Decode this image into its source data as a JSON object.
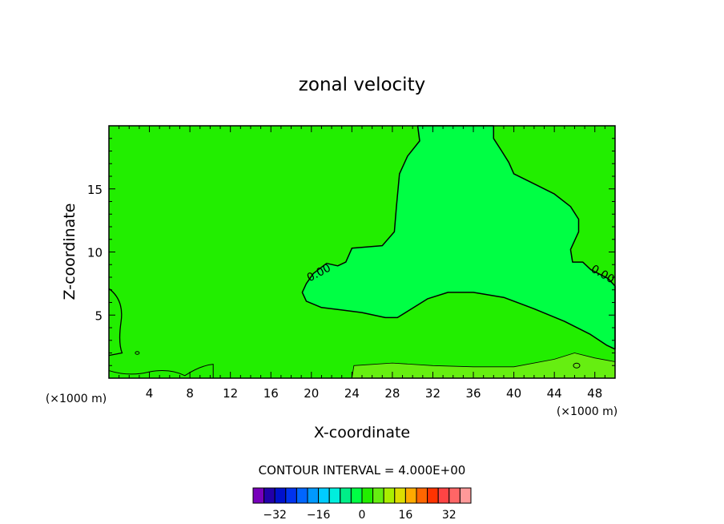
{
  "chart_data": {
    "type": "contour",
    "title": "zonal velocity",
    "xlabel": "X-coordinate",
    "ylabel": "Z-coordinate",
    "x_unit_label": "(×1000 m)",
    "y_unit_label": "(×1000 m)",
    "xlim": [
      0,
      50
    ],
    "ylim": [
      0,
      20
    ],
    "x_ticks": [
      4,
      8,
      12,
      16,
      20,
      24,
      28,
      32,
      36,
      40,
      44,
      48
    ],
    "y_ticks": [
      5,
      10,
      15
    ],
    "contour_interval_text": "CONTOUR INTERVAL = 4.000E+00",
    "contour_label_text": "0.00",
    "background_color": "#22ee00",
    "positive_region": {
      "color": "#00ff44",
      "boundary": [
        [
          30.5,
          20
        ],
        [
          30.7,
          18.8
        ],
        [
          29.5,
          17.6
        ],
        [
          28.7,
          16.2
        ],
        [
          28.4,
          13.6
        ],
        [
          28.2,
          11.6
        ],
        [
          27.0,
          10.5
        ],
        [
          24.0,
          10.3
        ],
        [
          23.4,
          9.2
        ],
        [
          22.6,
          8.9
        ],
        [
          21.5,
          9.1
        ],
        [
          20.2,
          8.3
        ],
        [
          19.5,
          7.5
        ],
        [
          19.1,
          6.8
        ],
        [
          19.5,
          6.1
        ],
        [
          21.0,
          5.6
        ],
        [
          23.0,
          5.4
        ],
        [
          25.0,
          5.2
        ],
        [
          27.3,
          4.8
        ],
        [
          28.5,
          4.8
        ],
        [
          29.5,
          5.3
        ],
        [
          31.5,
          6.3
        ],
        [
          33.5,
          6.8
        ],
        [
          36.0,
          6.8
        ],
        [
          39.0,
          6.4
        ],
        [
          42.0,
          5.5
        ],
        [
          45.0,
          4.5
        ],
        [
          47.5,
          3.5
        ],
        [
          49.2,
          2.6
        ],
        [
          50.0,
          2.3
        ],
        [
          50.0,
          7.3
        ],
        [
          49.3,
          7.9
        ],
        [
          47.6,
          8.6
        ],
        [
          46.8,
          9.2
        ],
        [
          45.8,
          9.2
        ],
        [
          45.6,
          10.2
        ],
        [
          46.4,
          11.6
        ],
        [
          46.4,
          12.6
        ],
        [
          45.6,
          13.6
        ],
        [
          44.0,
          14.6
        ],
        [
          42.0,
          15.4
        ],
        [
          40.0,
          16.2
        ],
        [
          39.5,
          17.1
        ],
        [
          38.8,
          18.0
        ],
        [
          38.0,
          19.0
        ],
        [
          38.0,
          20.0
        ]
      ]
    },
    "near_surface_band": {
      "color": "#66ee11",
      "boundary": [
        [
          24.0,
          0
        ],
        [
          24.2,
          1.0
        ],
        [
          28.0,
          1.2
        ],
        [
          32.0,
          1.0
        ],
        [
          36.0,
          0.9
        ],
        [
          40.0,
          0.9
        ],
        [
          44.0,
          1.5
        ],
        [
          46.0,
          2.0
        ],
        [
          48.0,
          1.6
        ],
        [
          50.0,
          1.3
        ],
        [
          50.0,
          0
        ]
      ]
    },
    "colorbar": {
      "colors": [
        "#7700bb",
        "#2200aa",
        "#0011cc",
        "#0033ee",
        "#0066ff",
        "#0099ff",
        "#00ccff",
        "#00eedd",
        "#00ee88",
        "#00ff44",
        "#22ee00",
        "#66ee11",
        "#aaee00",
        "#dddd00",
        "#ffaa00",
        "#ff6600",
        "#ff3300",
        "#ff4444",
        "#ff6666",
        "#ff9999"
      ],
      "tick_labels": [
        "−32",
        "−16",
        "0",
        "16",
        "32"
      ],
      "tick_values": [
        -32,
        -16,
        0,
        16,
        32
      ],
      "vmin": -40,
      "vmax": 40
    }
  }
}
